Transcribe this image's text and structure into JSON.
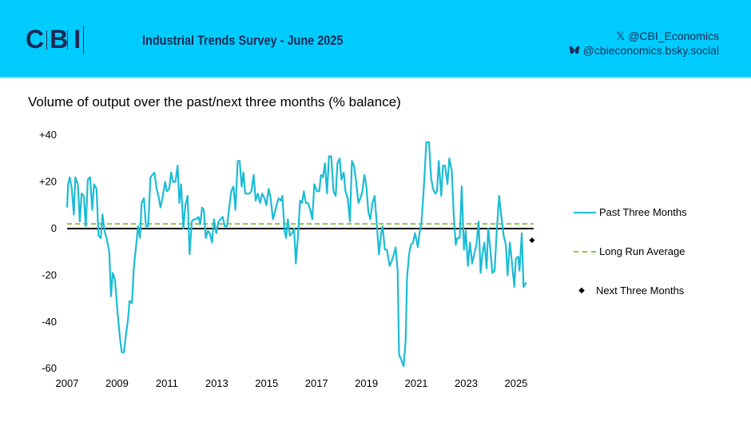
{
  "header": {
    "logo": "CBI",
    "survey_title": "Industrial Trends Survey - June 2025",
    "x_handle": "@CBI_Economics",
    "bluesky_handle": "@cbieconomics.bsky.social",
    "x_icon": "x-logo-icon",
    "bluesky_icon": "butterfly-icon",
    "background_color": "#00CCFF"
  },
  "chart_data": {
    "type": "line",
    "title": "Volume of output over the past/next three months (% balance)",
    "xlabel": "",
    "ylabel": "",
    "xlim": [
      2007,
      2025.8
    ],
    "ylim": [
      -60,
      40
    ],
    "x_ticks": [
      "2007",
      "2009",
      "2011",
      "2013",
      "2015",
      "2017",
      "2019",
      "2021",
      "2023",
      "2025"
    ],
    "y_ticks": [
      "+40",
      "+20",
      "0",
      "-20",
      "-40",
      "-60"
    ],
    "grid": false,
    "legend_position": "right",
    "series": [
      {
        "name": "Past Three Months",
        "color": "#1CBCD4",
        "style": "solid",
        "x": [
          2007.0,
          2007.04,
          2007.11,
          2007.19,
          2007.27,
          2007.33,
          2007.43,
          2007.51,
          2007.58,
          2007.67,
          2007.75,
          2007.83,
          2007.92,
          2008.01,
          2008.08,
          2008.18,
          2008.26,
          2008.35,
          2008.42,
          2008.5,
          2008.6,
          2008.69,
          2008.76,
          2008.83,
          2008.92,
          2009.03,
          2009.12,
          2009.19,
          2009.28,
          2009.35,
          2009.44,
          2009.5,
          2009.6,
          2009.67,
          2009.78,
          2009.84,
          2009.92,
          2009.99,
          2010.08,
          2010.16,
          2010.25,
          2010.34,
          2010.42,
          2010.5,
          2010.59,
          2010.66,
          2010.74,
          2010.82,
          2010.93,
          2011.0,
          2011.09,
          2011.17,
          2011.25,
          2011.34,
          2011.43,
          2011.5,
          2011.57,
          2011.66,
          2011.74,
          2011.83,
          2011.91,
          2012.0,
          2012.09,
          2012.17,
          2012.27,
          2012.34,
          2012.41,
          2012.48,
          2012.56,
          2012.64,
          2012.72,
          2012.81,
          2012.89,
          2012.98,
          2013.07,
          2013.15,
          2013.24,
          2013.32,
          2013.41,
          2013.5,
          2013.58,
          2013.67,
          2013.75,
          2013.84,
          2013.92,
          2014.0,
          2014.07,
          2014.14,
          2014.22,
          2014.31,
          2014.39,
          2014.48,
          2014.56,
          2014.65,
          2014.74,
          2014.82,
          2014.91,
          2014.99,
          2015.08,
          2015.16,
          2015.25,
          2015.33,
          2015.42,
          2015.48,
          2015.57,
          2015.63,
          2015.72,
          2015.78,
          2015.85,
          2015.93,
          2016.02,
          2016.1,
          2016.17,
          2016.25,
          2016.34,
          2016.42,
          2016.49,
          2016.57,
          2016.65,
          2016.75,
          2016.83,
          2016.91,
          2017.02,
          2017.11,
          2017.18,
          2017.26,
          2017.34,
          2017.42,
          2017.5,
          2017.59,
          2017.68,
          2017.77,
          2017.84,
          2017.93,
          2018.0,
          2018.09,
          2018.16,
          2018.25,
          2018.34,
          2018.42,
          2018.5,
          2018.58,
          2018.68,
          2018.76,
          2018.84,
          2018.92,
          2019.0,
          2019.08,
          2019.16,
          2019.24,
          2019.33,
          2019.41,
          2019.5,
          2019.59,
          2019.65,
          2019.74,
          2019.82,
          2019.93,
          2020.01,
          2020.1,
          2020.17,
          2020.25,
          2020.31,
          2020.39,
          2020.49,
          2020.57,
          2020.63,
          2020.71,
          2020.78,
          2020.87,
          2020.95,
          2021.06,
          2021.13,
          2021.21,
          2021.3,
          2021.4,
          2021.51,
          2021.59,
          2021.67,
          2021.76,
          2021.83,
          2021.9,
          2022.0,
          2022.07,
          2022.15,
          2022.25,
          2022.32,
          2022.42,
          2022.5,
          2022.58,
          2022.65,
          2022.74,
          2022.82,
          2022.91,
          2022.98,
          2023.07,
          2023.15,
          2023.24,
          2023.32,
          2023.41,
          2023.5,
          2023.58,
          2023.65,
          2023.73,
          2023.82,
          2023.88,
          2023.97,
          2024.05,
          2024.14,
          2024.22,
          2024.32,
          2024.4,
          2024.5,
          2024.59,
          2024.66,
          2024.75,
          2024.82,
          2024.93,
          2024.99,
          2025.08,
          2025.14,
          2025.23,
          2025.3,
          2025.41
        ],
        "values": [
          9,
          19,
          22,
          17,
          6,
          22,
          19,
          3,
          15,
          14,
          1,
          21,
          22,
          8,
          19,
          17,
          -3,
          -4,
          6,
          -1,
          -5,
          -10,
          -29,
          -19,
          -22,
          -37,
          -47,
          -53,
          -53,
          -46,
          -39,
          -31,
          -32,
          -17,
          -6,
          1,
          -4,
          11,
          13,
          1,
          1,
          22,
          23,
          24,
          17,
          14,
          9,
          13,
          20,
          16,
          17,
          24,
          20,
          20,
          27,
          11,
          19,
          0,
          10,
          14,
          -11,
          3,
          4,
          4,
          5,
          2,
          9,
          8,
          -4,
          -1,
          -2,
          -6,
          4,
          -2,
          3,
          4,
          5,
          1,
          1,
          9,
          16,
          18,
          8,
          29,
          29,
          18,
          24,
          15,
          15,
          15,
          16,
          23,
          12,
          15,
          11,
          15,
          13,
          10,
          17,
          13,
          4,
          7,
          11,
          13,
          12,
          14,
          -1,
          -4,
          4,
          -3,
          -2,
          0,
          -15,
          -4,
          12,
          11,
          16,
          11,
          11,
          8,
          4,
          19,
          16,
          16,
          23,
          22,
          28,
          15,
          31,
          31,
          16,
          14,
          28,
          30,
          21,
          24,
          16,
          13,
          3,
          29,
          27,
          21,
          11,
          13,
          16,
          23,
          18,
          7,
          4,
          11,
          14,
          3,
          -11,
          -2,
          1,
          -9,
          -9,
          -16,
          -14,
          -11,
          -8,
          -18,
          -54,
          -56,
          -59,
          -48,
          -21,
          -11,
          -7,
          -6,
          -2,
          -8,
          -2,
          3,
          17,
          37,
          37,
          22,
          17,
          15,
          16,
          29,
          14,
          27,
          27,
          19,
          30,
          25,
          6,
          -7,
          -4,
          -4,
          18,
          -9,
          -1,
          -16,
          -6,
          -15,
          -11,
          -7,
          3,
          -19,
          -11,
          -6,
          -17,
          0,
          -9,
          -19,
          -18,
          -2,
          14,
          6,
          -3,
          -7,
          -20,
          -6,
          -13,
          -25,
          -13,
          -12,
          -18,
          -2,
          -25,
          -23
        ]
      },
      {
        "name": "Long Run Average",
        "color": "#8DC63F",
        "style": "dashed",
        "value": 2
      },
      {
        "name": "Next Three Months",
        "color": "#000000",
        "style": "marker-diamond",
        "x": [
          2025.64
        ],
        "values": [
          -5
        ]
      }
    ]
  }
}
